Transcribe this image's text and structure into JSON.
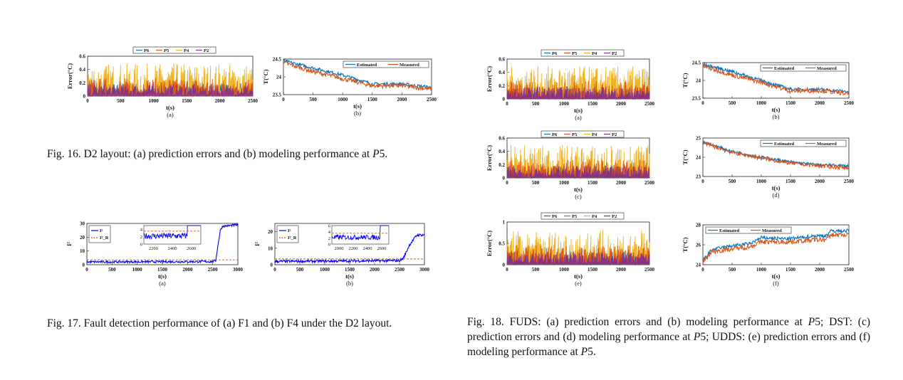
{
  "captions": {
    "fig16": {
      "prefix": "Fig. 16.  D2 layout: (a) prediction errors and (b) modeling performance at ",
      "var": "P",
      "suffix": "5."
    },
    "fig17": {
      "text": "Fig. 17.  Fault detection performance of (a) F1 and (b) F4 under the D2 layout."
    },
    "fig18": {
      "part1": "Fig. 18.  FUDS: (a) prediction errors and (b) modeling performance at ",
      "part2": "5; DST: (c) prediction errors and (d) modeling performance at ",
      "part3": "5; UDDS: (e) prediction errors and (f) modeling performance at ",
      "part4": "5.",
      "var": "P"
    }
  },
  "colors": {
    "P6": "#0072BD",
    "P5": "#D95319",
    "P4": "#EDB120",
    "P2": "#7E2F8E",
    "estimated": "#0072BD",
    "measured": "#D95319",
    "t2": "#0000FF",
    "threshold": "#D95319"
  },
  "chart_data": [
    {
      "id": "fig16a",
      "type": "line",
      "sublabel": "(a)",
      "xlabel": "t(s)",
      "ylabel": "Error(°C)",
      "xlim": [
        0,
        2500
      ],
      "ylim": [
        0,
        0.6
      ],
      "xticks": [
        0,
        500,
        1000,
        1500,
        2000,
        2500
      ],
      "yticks": [
        0,
        0.2,
        0.4,
        0.6
      ],
      "legend": {
        "position": "top",
        "entries": [
          "P6",
          "P5",
          "P4",
          "P2"
        ]
      },
      "series": [
        {
          "name": "P6",
          "values_approx_range": [
            0,
            0.2
          ]
        },
        {
          "name": "P5",
          "values_approx_range": [
            0,
            0.3
          ]
        },
        {
          "name": "P4",
          "values_approx_range": [
            0,
            0.55
          ]
        },
        {
          "name": "P2",
          "values_approx_range": [
            0,
            0.3
          ]
        }
      ]
    },
    {
      "id": "fig16b",
      "type": "line",
      "sublabel": "(b)",
      "xlabel": "t(s)",
      "ylabel": "T(°C)",
      "xlim": [
        0,
        2500
      ],
      "ylim": [
        23.5,
        24.5
      ],
      "xticks": [
        0,
        500,
        1000,
        1500,
        2000,
        2500
      ],
      "yticks": [
        23.5,
        24,
        24.5
      ],
      "legend": {
        "position": "top-right",
        "entries": [
          "Estimated",
          "Measured"
        ]
      },
      "series": [
        {
          "name": "Estimated",
          "x": [
            0,
            500,
            1000,
            1500,
            2000,
            2500
          ],
          "y": [
            24.45,
            24.25,
            24.05,
            23.8,
            23.8,
            23.7
          ]
        },
        {
          "name": "Measured",
          "x": [
            0,
            500,
            1000,
            1500,
            2000,
            2500
          ],
          "y": [
            24.4,
            24.15,
            23.95,
            23.75,
            23.75,
            23.65
          ]
        }
      ]
    },
    {
      "id": "fig17a",
      "type": "line",
      "sublabel": "(a)",
      "xlabel": "t(s)",
      "ylabel": "I²",
      "xlim": [
        0,
        3000
      ],
      "ylim": [
        0,
        30
      ],
      "xticks": [
        0,
        500,
        1000,
        1500,
        2000,
        2500,
        3000
      ],
      "yticks": [
        0,
        10,
        20,
        30
      ],
      "legend": {
        "position": "top-left",
        "entries": [
          "I²",
          "I²_R"
        ]
      },
      "threshold": 3.5,
      "series": [
        {
          "name": "I²",
          "x": [
            0,
            2500,
            2560,
            2650,
            2700,
            3000
          ],
          "y": [
            2,
            2.3,
            3,
            25,
            28,
            29
          ]
        }
      ],
      "inset": {
        "xlim": [
          2100,
          2700
        ],
        "ylim": [
          0,
          5
        ],
        "xticks": [
          2200,
          2400,
          2600
        ],
        "yticks": [
          0,
          2,
          4
        ]
      }
    },
    {
      "id": "fig17b",
      "type": "line",
      "sublabel": "(b)",
      "xlabel": "t(s)",
      "ylabel": "I²",
      "xlim": [
        0,
        3000
      ],
      "ylim": [
        0,
        25
      ],
      "xticks": [
        0,
        500,
        1000,
        1500,
        2000,
        2500,
        3000
      ],
      "yticks": [
        0,
        10,
        20
      ],
      "legend": {
        "position": "top-left",
        "entries": [
          "I²",
          "I²_R"
        ]
      },
      "threshold": 3.5,
      "series": [
        {
          "name": "I²",
          "x": [
            0,
            2500,
            2580,
            2700,
            2850,
            3000
          ],
          "y": [
            2,
            2.5,
            4,
            12,
            18,
            18
          ]
        }
      ],
      "inset": {
        "xlim": [
          1900,
          2700
        ],
        "ylim": [
          0,
          6
        ],
        "xticks": [
          2000,
          2200,
          2400,
          2600
        ],
        "yticks": [
          0,
          2,
          4,
          6
        ]
      }
    },
    {
      "id": "fig18a",
      "type": "line",
      "sublabel": "(a)",
      "xlabel": "t(s)",
      "ylabel": "Error(°C)",
      "xlim": [
        0,
        2500
      ],
      "ylim": [
        0,
        0.6
      ],
      "xticks": [
        0,
        500,
        1000,
        1500,
        2000,
        2500
      ],
      "yticks": [
        0,
        0.2,
        0.4,
        0.6
      ],
      "legend": {
        "position": "top",
        "entries": [
          "P6",
          "P5",
          "P4",
          "P2"
        ]
      }
    },
    {
      "id": "fig18b",
      "type": "line",
      "sublabel": "(b)",
      "xlabel": "t(s)",
      "ylabel": "T(°C)",
      "xlim": [
        0,
        2500
      ],
      "ylim": [
        23.5,
        24.5
      ],
      "xticks": [
        0,
        500,
        1000,
        1500,
        2000,
        2500
      ],
      "yticks": [
        23.5,
        24,
        24.5
      ],
      "legend": {
        "position": "top-right",
        "entries": [
          "Estimated",
          "Measured"
        ]
      },
      "series": [
        {
          "name": "Estimated",
          "x": [
            0,
            500,
            1000,
            1500,
            2000,
            2500
          ],
          "y": [
            24.45,
            24.25,
            24.0,
            23.75,
            23.75,
            23.68
          ]
        },
        {
          "name": "Measured",
          "x": [
            0,
            500,
            1000,
            1500,
            2000,
            2500
          ],
          "y": [
            24.4,
            24.15,
            23.95,
            23.7,
            23.72,
            23.62
          ]
        }
      ]
    },
    {
      "id": "fig18c",
      "type": "line",
      "sublabel": "(c)",
      "xlabel": "t(s)",
      "ylabel": "Error(°C)",
      "xlim": [
        0,
        2500
      ],
      "ylim": [
        0,
        0.6
      ],
      "xticks": [
        0,
        500,
        1000,
        1500,
        2000,
        2500
      ],
      "yticks": [
        0,
        0.2,
        0.4,
        0.6
      ],
      "legend": {
        "position": "top",
        "entries": [
          "P6",
          "P5",
          "P4",
          "P2"
        ]
      }
    },
    {
      "id": "fig18d",
      "type": "line",
      "sublabel": "(d)",
      "xlabel": "t(s)",
      "ylabel": "T(°C)",
      "xlim": [
        0,
        2500
      ],
      "ylim": [
        23,
        25
      ],
      "xticks": [
        0,
        500,
        1000,
        1500,
        2000,
        2500
      ],
      "yticks": [
        23,
        24,
        25
      ],
      "legend": {
        "position": "top-right",
        "entries": [
          "Estimated",
          "Measured"
        ]
      },
      "series": [
        {
          "name": "Estimated",
          "x": [
            0,
            500,
            1000,
            1500,
            2000,
            2500
          ],
          "y": [
            24.8,
            24.3,
            24.0,
            23.75,
            23.6,
            23.55
          ]
        },
        {
          "name": "Measured",
          "x": [
            0,
            500,
            1000,
            1500,
            2000,
            2500
          ],
          "y": [
            24.75,
            24.25,
            23.95,
            23.7,
            23.55,
            23.45
          ]
        }
      ]
    },
    {
      "id": "fig18e",
      "type": "line",
      "sublabel": "(e)",
      "xlabel": "t(s)",
      "ylabel": "Error(°C)",
      "xlim": [
        0,
        2500
      ],
      "ylim": [
        0,
        1
      ],
      "xticks": [
        0,
        500,
        1000,
        1500,
        2000,
        2500
      ],
      "yticks": [
        0,
        0.5,
        1
      ],
      "legend": {
        "position": "top",
        "entries": [
          "P6",
          "P5",
          "P4",
          "P2"
        ]
      }
    },
    {
      "id": "fig18f",
      "type": "line",
      "sublabel": "(f)",
      "xlabel": "t(s)",
      "ylabel": "T(°C)",
      "xlim": [
        0,
        2500
      ],
      "ylim": [
        24,
        28
      ],
      "xticks": [
        0,
        500,
        1000,
        1500,
        2000,
        2500
      ],
      "yticks": [
        24,
        26,
        28
      ],
      "legend": {
        "position": "top-left",
        "entries": [
          "Estimated",
          "Measured"
        ]
      },
      "series": [
        {
          "name": "Estimated",
          "x": [
            0,
            150,
            500,
            800,
            1000,
            1500,
            1900,
            2100,
            2200,
            2500
          ],
          "y": [
            24.4,
            25.5,
            25.9,
            26.1,
            26.7,
            26.6,
            26.9,
            26.9,
            27.4,
            27.4
          ]
        },
        {
          "name": "Measured",
          "x": [
            0,
            150,
            500,
            800,
            1000,
            1500,
            1900,
            2100,
            2200,
            2500
          ],
          "y": [
            24.3,
            25.3,
            25.6,
            25.8,
            26.3,
            26.3,
            26.5,
            26.5,
            27.0,
            27.0
          ]
        }
      ]
    }
  ]
}
